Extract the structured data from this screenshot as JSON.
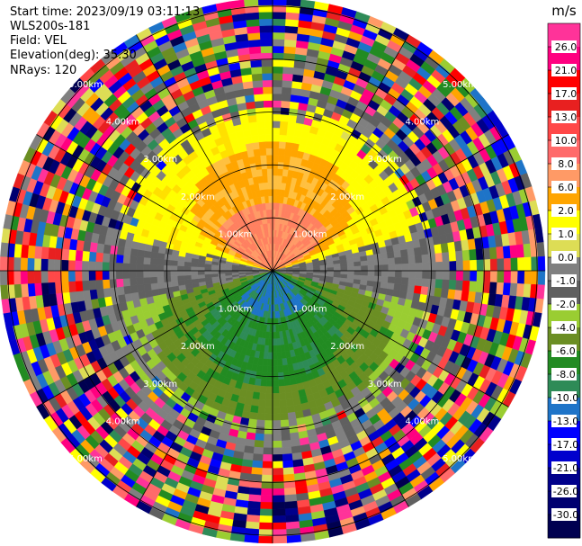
{
  "header": {
    "start_time": "Start time: 2023/09/19 03:11:13",
    "instrument": "WLS200s-181",
    "field": "Field: VEL",
    "elevation": "Elevation(deg): 35.30",
    "nrays": "NRays: 120"
  },
  "chart_data": {
    "type": "heatmap",
    "subtype": "polar-ppi",
    "field": "VEL",
    "unit": "m/s",
    "n_rays": 120,
    "range_rings_km": [
      1.0,
      2.0,
      3.0,
      4.0,
      5.0
    ],
    "ring_labels": [
      "1.00km",
      "2.00km",
      "3.00km",
      "4.00km",
      "5.00km"
    ],
    "spoke_angles_deg": [
      0,
      30,
      60,
      90,
      120,
      150,
      180,
      210,
      240,
      270,
      300,
      330
    ],
    "colorbar": {
      "title": "m/s",
      "tick_labels": [
        "26.0",
        "21.0",
        "17.0",
        "13.0",
        "10.0",
        "8.0",
        "6.0",
        "2.0",
        "1.0",
        "0.0",
        "-1.0",
        "-2.0",
        "-4.0",
        "-6.0",
        "-8.0",
        "-10.0",
        "-13.0",
        "-17.0",
        "-21.0",
        "-26.0",
        "-30.0"
      ],
      "colors": [
        "#ff3399",
        "#ff0080",
        "#ff0000",
        "#e82020",
        "#ff4848",
        "#ff6a6a",
        "#ff9a66",
        "#ffa500",
        "#ffff00",
        "#dddd55",
        "#808080",
        "#606060",
        "#9acd32",
        "#6b8e23",
        "#228b22",
        "#2e8b57",
        "#1e74c8",
        "#0000ff",
        "#0000cd",
        "#00008b",
        "#000070",
        "#000050"
      ]
    },
    "description_regions": [
      {
        "sector": "north",
        "range_km": [
          0,
          3.0
        ],
        "velocity_ms": [
          2.0,
          10.0
        ]
      },
      {
        "sector": "south",
        "range_km": [
          0,
          3.0
        ],
        "velocity_ms": [
          -8.0,
          -1.0
        ]
      },
      {
        "sector": "east-west",
        "range_km": [
          0,
          3.0
        ],
        "velocity_ms": [
          -1.0,
          1.0
        ]
      },
      {
        "sector": "all",
        "range_km": [
          3.0,
          5.0
        ],
        "velocity_ms": [
          -30.0,
          26.0
        ]
      }
    ]
  }
}
